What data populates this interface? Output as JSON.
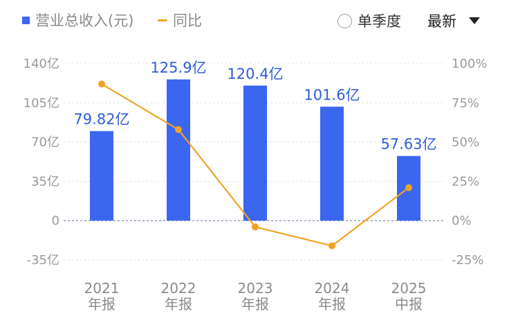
{
  "legend": {
    "revenue_label": "营业总收入(元)",
    "yoy_label": "同比"
  },
  "controls": {
    "season_label": "单季度",
    "sort_label": "最新"
  },
  "colors": {
    "bar": "#3a66f0",
    "line": "#f0a323",
    "grid": "#d9d9d9",
    "zero_line": "#8a96b0"
  },
  "chart_data": {
    "type": "bar",
    "categories": [
      "2021\n年报",
      "2022\n年报",
      "2023\n年报",
      "2024\n年报",
      "2025\n中报"
    ],
    "series": [
      {
        "values": [
          79.82,
          125.9,
          120.4,
          101.6,
          57.63
        ],
        "axis": "left",
        "chart": "bar"
      },
      {
        "values": [
          87,
          58,
          -4,
          -16,
          21
        ],
        "axis": "right",
        "chart": "line"
      }
    ],
    "data_labels": [
      "79.82亿",
      "125.9亿",
      "120.4亿",
      "101.6亿",
      "57.63亿"
    ],
    "ylim_left": [
      -35,
      140
    ],
    "yticks_left": [
      "140亿",
      "105亿",
      "70亿",
      "35亿",
      "0",
      "-35亿"
    ],
    "ylim_right": [
      -25,
      100
    ],
    "yticks_right": [
      "100%",
      "75%",
      "50%",
      "25%",
      "0%",
      "-25%"
    ],
    "grid": true
  }
}
